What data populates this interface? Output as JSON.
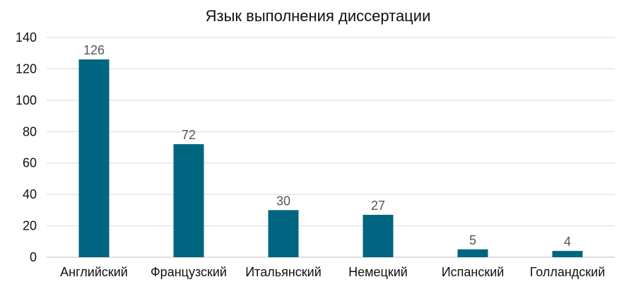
{
  "chart_data": {
    "type": "bar",
    "title": "Язык выполнения диссертации",
    "xlabel": "",
    "ylabel": "",
    "categories": [
      "Английский",
      "Французский",
      "Итальянский",
      "Немецкий",
      "Испанский",
      "Голландский"
    ],
    "values": [
      126,
      72,
      30,
      27,
      5,
      4
    ],
    "data_labels": [
      "126",
      "72",
      "30",
      "27",
      "5",
      "4"
    ],
    "yticks": [
      0,
      20,
      40,
      60,
      80,
      100,
      120,
      140
    ],
    "ylim": [
      0,
      140
    ],
    "grid": true,
    "legend": "none",
    "colors": {
      "bar": "#006580",
      "grid": "#d9d9d9",
      "axis": "#bfbfbf"
    }
  }
}
